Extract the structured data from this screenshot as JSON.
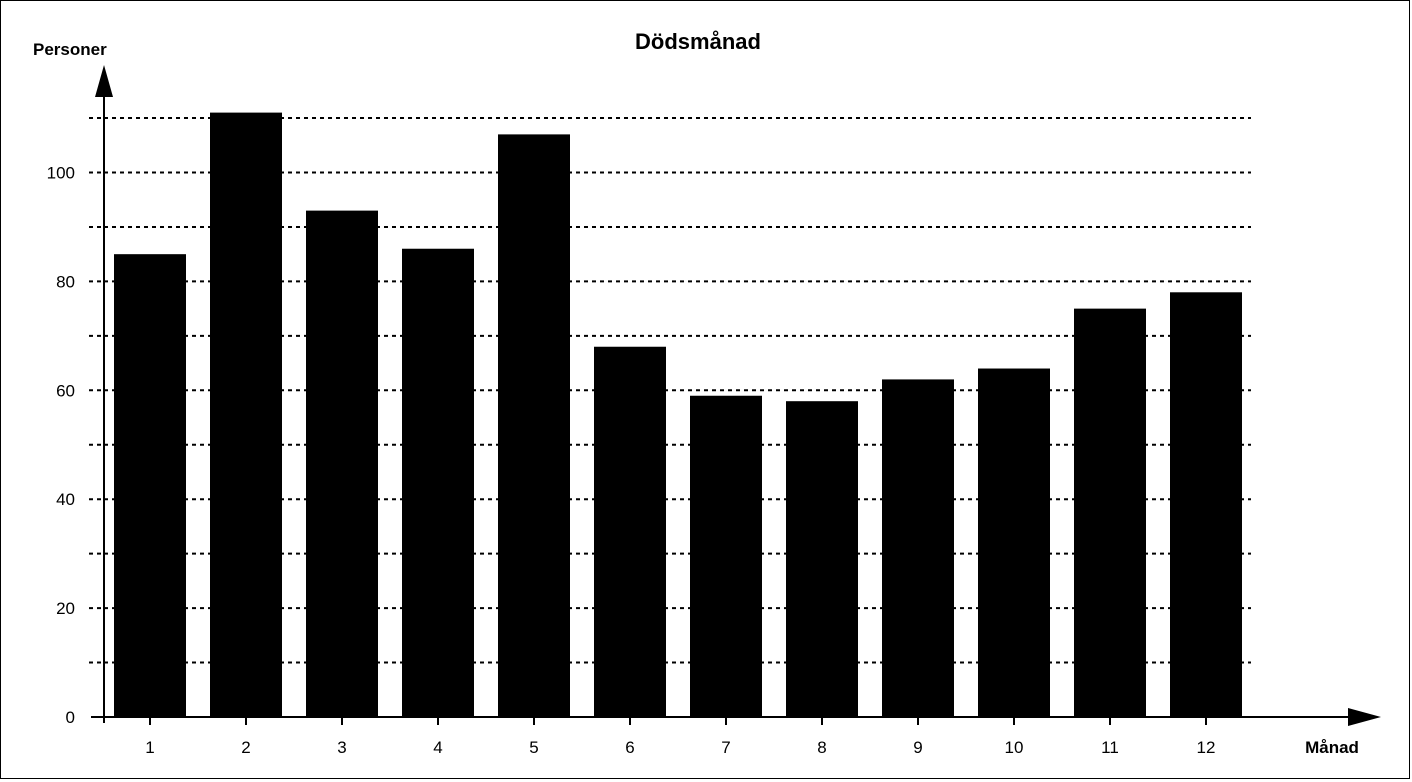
{
  "chart_data": {
    "type": "bar",
    "title": "Dödsmånad",
    "ylabel": "Personer",
    "xlabel": "Månad",
    "categories": [
      "1",
      "2",
      "3",
      "4",
      "5",
      "6",
      "7",
      "8",
      "9",
      "10",
      "11",
      "12"
    ],
    "values": [
      85,
      111,
      93,
      86,
      107,
      68,
      59,
      58,
      62,
      64,
      75,
      78
    ],
    "ylim": [
      0,
      110
    ],
    "yticks": [
      0,
      20,
      40,
      60,
      80,
      100
    ],
    "gridlines": [
      10,
      20,
      30,
      40,
      50,
      60,
      70,
      80,
      90,
      100,
      110
    ],
    "grid": "dotted horizontal",
    "colors": {
      "bar": "#000000",
      "grid": "#000000",
      "background": "#ffffff"
    }
  }
}
